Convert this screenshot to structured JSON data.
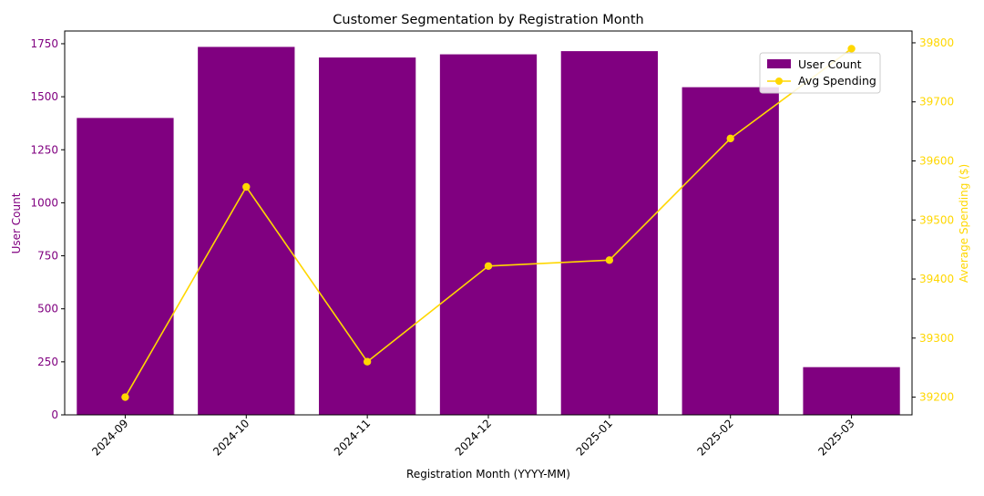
{
  "colors": {
    "bar": "#800080",
    "line": "#FFD700",
    "left_axis_text": "#800080",
    "right_axis_text": "#FFD700",
    "axis": "#000000"
  },
  "chart_data": {
    "type": "bar",
    "title": "Customer Segmentation by Registration Month",
    "xlabel": "Registration Month (YYYY-MM)",
    "categories": [
      "2024-09",
      "2024-10",
      "2024-11",
      "2024-12",
      "2025-01",
      "2025-02",
      "2025-03"
    ],
    "grid": false,
    "legend_position": "top-right",
    "series": [
      {
        "name": "User Count",
        "type": "bar",
        "axis": "left",
        "values": [
          1400,
          1735,
          1685,
          1700,
          1715,
          1545,
          225
        ]
      },
      {
        "name": "Avg Spending",
        "type": "line",
        "axis": "right",
        "marker": "circle",
        "values": [
          39200,
          39556,
          39260,
          39422,
          39432,
          39638,
          39790
        ]
      }
    ],
    "y_left": {
      "label": "User Count",
      "range": [
        0,
        1810
      ],
      "ticks": [
        0,
        250,
        500,
        750,
        1000,
        1250,
        1500,
        1750
      ]
    },
    "y_right": {
      "label": "Average Spending ($)",
      "range": [
        39170,
        39820
      ],
      "ticks": [
        39200,
        39300,
        39400,
        39500,
        39600,
        39700,
        39800
      ]
    }
  }
}
